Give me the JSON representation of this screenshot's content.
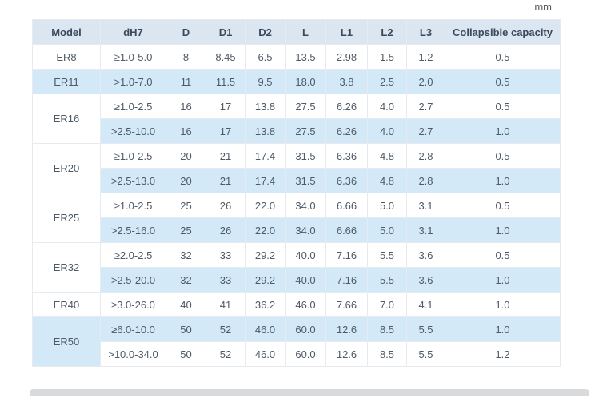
{
  "page": {
    "unit_label": "mm"
  },
  "colors": {
    "header_bg": "#dce6f1",
    "stripe_bg": "#d3e9f8",
    "border": "#e7ebf0",
    "header_text": "#394a5e",
    "body_text": "#4e5a66"
  },
  "table": {
    "headers": [
      "Model",
      "dH7",
      "D",
      "D1",
      "D2",
      "L",
      "L1",
      "L2",
      "L3",
      "Collapsible capacity"
    ],
    "groups": [
      {
        "model": "ER8",
        "rows": [
          [
            "≥1.0-5.0",
            "8",
            "8.45",
            "6.5",
            "13.5",
            "2.98",
            "1.5",
            "1.2",
            "0.5"
          ]
        ]
      },
      {
        "model": "ER11",
        "rows": [
          [
            ">1.0-7.0",
            "11",
            "11.5",
            "9.5",
            "18.0",
            "3.8",
            "2.5",
            "2.0",
            "0.5"
          ]
        ]
      },
      {
        "model": "ER16",
        "rows": [
          [
            "≥1.0-2.5",
            "16",
            "17",
            "13.8",
            "27.5",
            "6.26",
            "4.0",
            "2.7",
            "0.5"
          ],
          [
            ">2.5-10.0",
            "16",
            "17",
            "13.8",
            "27.5",
            "6.26",
            "4.0",
            "2.7",
            "1.0"
          ]
        ]
      },
      {
        "model": "ER20",
        "rows": [
          [
            "≥1.0-2.5",
            "20",
            "21",
            "17.4",
            "31.5",
            "6.36",
            "4.8",
            "2.8",
            "0.5"
          ],
          [
            ">2.5-13.0",
            "20",
            "21",
            "17.4",
            "31.5",
            "6.36",
            "4.8",
            "2.8",
            "1.0"
          ]
        ]
      },
      {
        "model": "ER25",
        "rows": [
          [
            "≥1.0-2.5",
            "25",
            "26",
            "22.0",
            "34.0",
            "6.66",
            "5.0",
            "3.1",
            "0.5"
          ],
          [
            ">2.5-16.0",
            "25",
            "26",
            "22.0",
            "34.0",
            "6.66",
            "5.0",
            "3.1",
            "1.0"
          ]
        ]
      },
      {
        "model": "ER32",
        "rows": [
          [
            "≥2.0-2.5",
            "32",
            "33",
            "29.2",
            "40.0",
            "7.16",
            "5.5",
            "3.6",
            "0.5"
          ],
          [
            ">2.5-20.0",
            "32",
            "33",
            "29.2",
            "40.0",
            "7.16",
            "5.5",
            "3.6",
            "1.0"
          ]
        ]
      },
      {
        "model": "ER40",
        "rows": [
          [
            "≥3.0-26.0",
            "40",
            "41",
            "36.2",
            "46.0",
            "7.66",
            "7.0",
            "4.1",
            "1.0"
          ]
        ]
      },
      {
        "model": "ER50",
        "rows": [
          [
            "≥6.0-10.0",
            "50",
            "52",
            "46.0",
            "60.0",
            "12.6",
            "8.5",
            "5.5",
            "1.0"
          ],
          [
            ">10.0-34.0",
            "50",
            "52",
            "46.0",
            "60.0",
            "12.6",
            "8.5",
            "5.5",
            "1.2"
          ]
        ]
      }
    ]
  }
}
